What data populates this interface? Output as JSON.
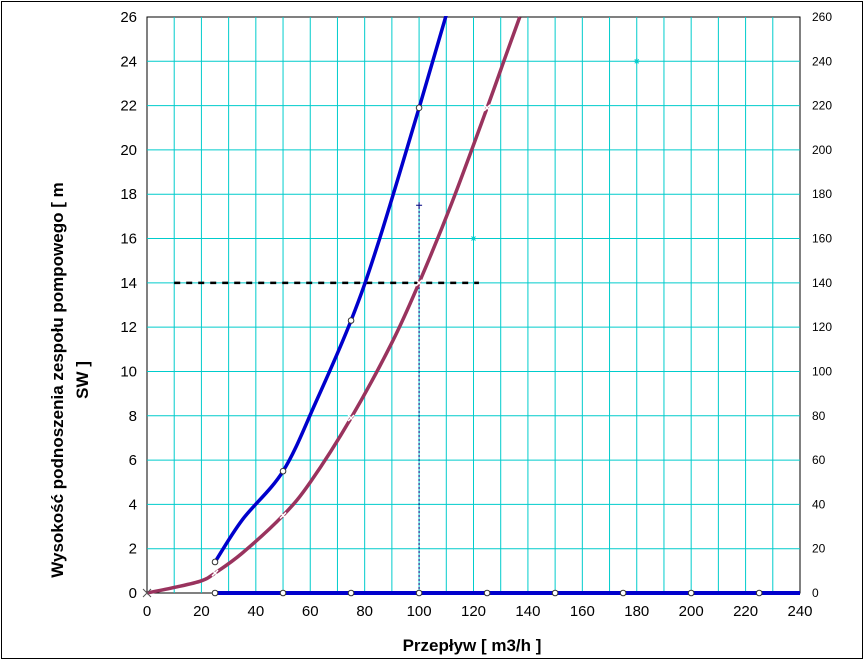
{
  "chart_data": {
    "type": "line",
    "title": "",
    "xlabel": "Przepływ  [ m3/h ]",
    "ylabel_line1": "Wysokość podnoszenia zespołu pompowego [ m",
    "ylabel_line2": "SW ]",
    "xlim": [
      0,
      240
    ],
    "ylim": [
      0,
      26
    ],
    "y2lim": [
      0,
      260
    ],
    "grid": true,
    "x_ticks": [
      "0",
      "20",
      "40",
      "60",
      "80",
      "100",
      "120",
      "140",
      "160",
      "180",
      "200",
      "220",
      "240"
    ],
    "y_ticks": [
      "0",
      "2",
      "4",
      "6",
      "8",
      "10",
      "12",
      "14",
      "16",
      "18",
      "20",
      "22",
      "24",
      "26"
    ],
    "y2_ticks": [
      "0",
      "20",
      "40",
      "60",
      "80",
      "100",
      "120",
      "140",
      "160",
      "180",
      "200",
      "220",
      "240",
      "260"
    ],
    "series": [
      {
        "name": "curve-blue",
        "color": "#0000CC",
        "marker": "circle",
        "x": [
          25,
          35,
          50,
          62,
          75,
          85,
          100,
          110
        ],
        "y": [
          1.4,
          3.3,
          5.5,
          8.6,
          12.3,
          15.8,
          21.9,
          26.1
        ]
      },
      {
        "name": "curve-maroon",
        "color": "#99335E",
        "marker": "cross",
        "x": [
          0,
          10,
          20,
          25,
          35,
          50,
          60,
          75,
          90,
          100,
          112,
          125,
          132,
          137
        ],
        "y": [
          0,
          0.25,
          0.55,
          0.9,
          1.8,
          3.5,
          5.0,
          7.9,
          11.3,
          14.0,
          17.6,
          21.9,
          24.3,
          26.0
        ]
      },
      {
        "name": "baseline-blue",
        "color": "#0000CC",
        "marker": "circle",
        "x": [
          25,
          50,
          75,
          100,
          125,
          150,
          175,
          200,
          225,
          240
        ],
        "y": [
          0,
          0,
          0,
          0,
          0,
          0,
          0,
          0,
          0,
          0
        ]
      }
    ],
    "reference_lines": {
      "horizontal": {
        "y": 14,
        "x_from": 10,
        "x_to": 122,
        "color": "#000000"
      },
      "vertical": {
        "x": 100,
        "y_from": 0,
        "y_to": 17.5,
        "color": "#000080"
      }
    },
    "stray_markers": [
      {
        "x": 120,
        "y": 16,
        "color": "#00CCCC"
      },
      {
        "x": 180,
        "y": 24,
        "color": "#00CCCC"
      }
    ]
  }
}
